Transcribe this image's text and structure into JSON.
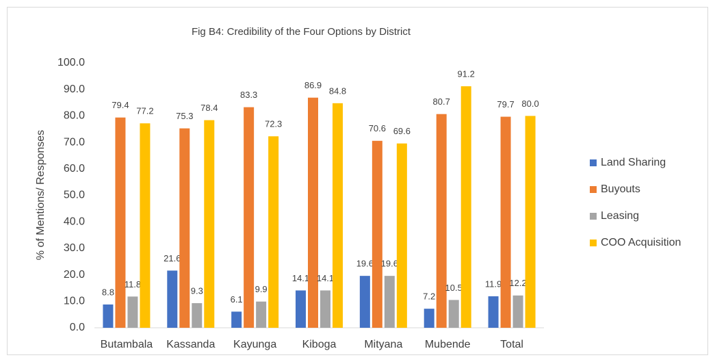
{
  "chart_data": {
    "type": "bar",
    "title": "Fig B4: Credibility of the Four Options by District",
    "y_label": "% of Mentions/ Responses",
    "categories": [
      "Butambala",
      "Kassanda",
      "Kayunga",
      "Kiboga",
      "Mityana",
      "Mubende",
      "Total"
    ],
    "series": [
      {
        "name": "Land Sharing",
        "color": "#4472c4",
        "values": [
          8.8,
          21.6,
          6.1,
          14.1,
          19.6,
          7.2,
          11.9
        ],
        "value_labels": [
          "8.8",
          "21.6",
          "6.1",
          "14.1",
          "19.6",
          "7.2",
          "11.9"
        ]
      },
      {
        "name": "Buyouts",
        "color": "#ed7d31",
        "values": [
          79.4,
          75.3,
          83.3,
          86.9,
          70.6,
          80.7,
          79.7
        ],
        "value_labels": [
          "79.4",
          "75.3",
          "83.3",
          "86.9",
          "70.6",
          "80.7",
          "79.7"
        ]
      },
      {
        "name": "Leasing",
        "color": "#a5a5a5",
        "values": [
          11.8,
          9.3,
          9.9,
          14.1,
          19.6,
          10.5,
          12.2
        ],
        "value_labels": [
          "11.8",
          "9.3",
          "9.9",
          "14.1",
          "19.6",
          "10.5",
          "12.2"
        ]
      },
      {
        "name": "COO Acquisition",
        "color": "#ffc000",
        "values": [
          77.2,
          78.4,
          72.3,
          84.8,
          69.6,
          91.2,
          80.0
        ],
        "value_labels": [
          "77.2",
          "78.4",
          "72.3",
          "84.8",
          "69.6",
          "91.2",
          "80.0"
        ]
      }
    ],
    "ylim": [
      0,
      100
    ],
    "yticks": [
      {
        "value": 0,
        "label": "0.0"
      },
      {
        "value": 10,
        "label": "10.0"
      },
      {
        "value": 20,
        "label": "20.0"
      },
      {
        "value": 30,
        "label": "30.0"
      },
      {
        "value": 40,
        "label": "40.0"
      },
      {
        "value": 50,
        "label": "50.0"
      },
      {
        "value": 60,
        "label": "60.0"
      },
      {
        "value": 70,
        "label": "70.0"
      },
      {
        "value": 80,
        "label": "80.0"
      },
      {
        "value": 90,
        "label": "90.0"
      },
      {
        "value": 100,
        "label": "100.0"
      }
    ],
    "grid": false,
    "legend": "right"
  }
}
